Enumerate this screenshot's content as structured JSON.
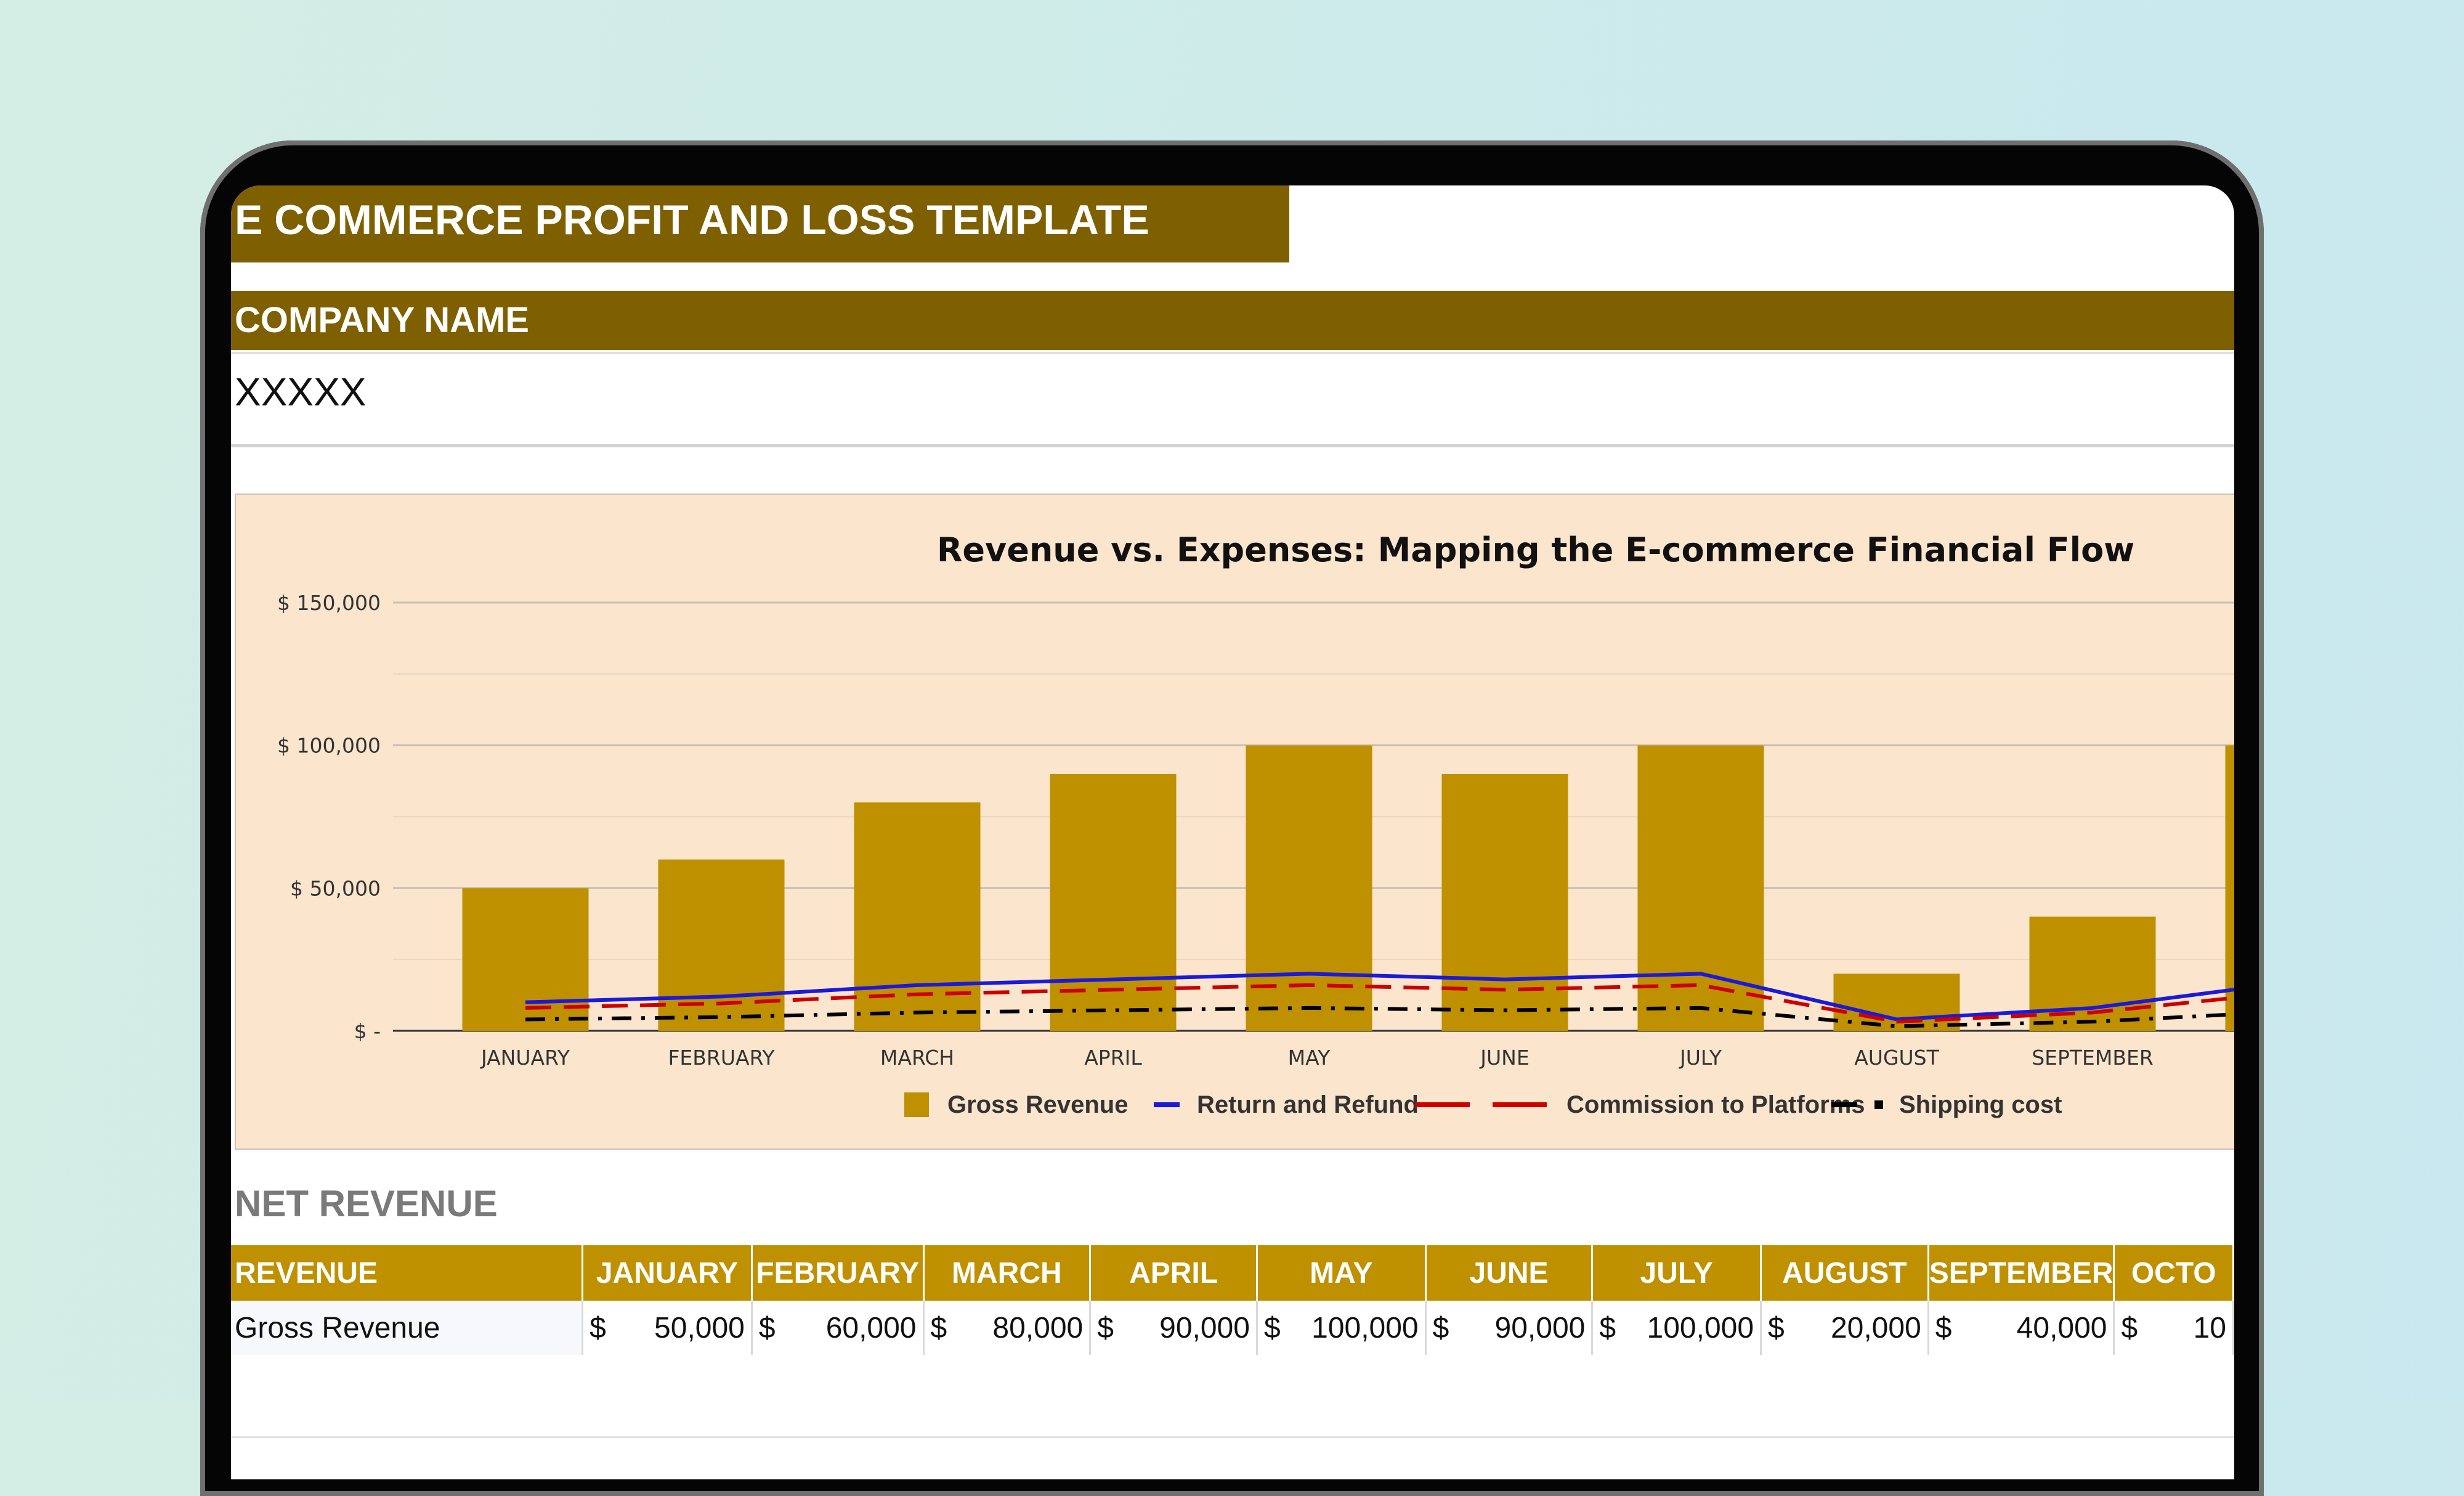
{
  "sheet": {
    "title": "E COMMERCE PROFIT AND LOSS TEMPLATE",
    "company_label": "COMPANY NAME",
    "company_value": "XXXXX",
    "section_title": "NET REVENUE"
  },
  "colors": {
    "title_bg": "#7e6000",
    "header_bg": "#bf9000",
    "chart_bg": "#fce5cd",
    "gross_revenue": "#bf9000",
    "return_refund": "#1a1ad8",
    "commission": "#cc0000",
    "shipping": "#000000"
  },
  "chart_data": {
    "type": "bar",
    "title": "Revenue vs. Expenses: Mapping the E-commerce Financial Flow",
    "categories": [
      "JANUARY",
      "FEBRUARY",
      "MARCH",
      "APRIL",
      "MAY",
      "JUNE",
      "JULY",
      "AUGUST",
      "SEPTEMBER"
    ],
    "y_ticks": [
      "$ -",
      "$ 50,000",
      "$ 100,000",
      "$ 150,000"
    ],
    "ylim": [
      0,
      150000
    ],
    "grid": true,
    "legend_position": "bottom",
    "series": [
      {
        "name": "Gross Revenue",
        "kind": "bar",
        "values": [
          50000,
          60000,
          80000,
          90000,
          100000,
          90000,
          100000,
          20000,
          40000
        ]
      },
      {
        "name": "Return and Refund",
        "kind": "line",
        "style": "solid",
        "values": [
          10000,
          12000,
          16000,
          18000,
          20000,
          18000,
          20000,
          4000,
          8000
        ]
      },
      {
        "name": "Commission to Platforms",
        "kind": "line",
        "style": "dashed",
        "values": [
          8000,
          9600,
          12800,
          14400,
          16000,
          14400,
          16000,
          3200,
          6400
        ]
      },
      {
        "name": "Shipping cost",
        "kind": "line",
        "style": "dash-dot",
        "values": [
          4000,
          4800,
          6400,
          7200,
          8000,
          7200,
          8000,
          1600,
          3200
        ]
      }
    ]
  },
  "table": {
    "headers": [
      "REVENUE",
      "JANUARY",
      "FEBRUARY",
      "MARCH",
      "APRIL",
      "MAY",
      "JUNE",
      "JULY",
      "AUGUST",
      "SEPTEMBER",
      "OCTO"
    ],
    "rows": [
      {
        "label": "Gross Revenue",
        "currency": "$",
        "values": [
          "50,000",
          "60,000",
          "80,000",
          "90,000",
          "100,000",
          "90,000",
          "100,000",
          "20,000",
          "40,000",
          "10"
        ]
      }
    ]
  }
}
